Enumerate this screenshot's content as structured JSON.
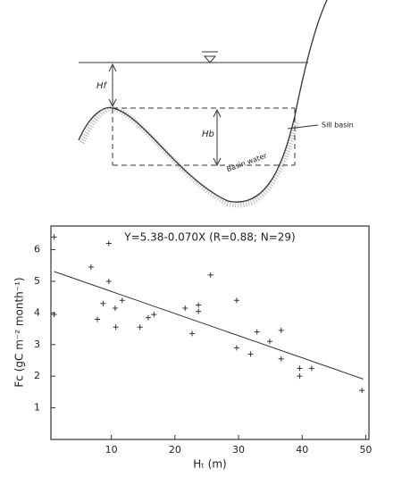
{
  "diagram": {
    "labels": [
      "Hf",
      "Hb",
      "Sill basin",
      "Basin water"
    ]
  },
  "chart_data": {
    "type": "scatter",
    "title": "Y=5.38-0.070X    (R=0.88; N=29)",
    "x_label": "Hₜ (m)",
    "y_label": "Fc (gC m⁻² month⁻¹)",
    "xlim": [
      0.5,
      50.5
    ],
    "ylim": [
      0,
      6.75
    ],
    "xticks": [
      10,
      20,
      30,
      40,
      50
    ],
    "yticks": [
      1,
      2,
      3,
      4,
      5,
      6
    ],
    "color": "#333333",
    "x": [
      1.0,
      1.0,
      6.8,
      7.8,
      8.7,
      9.6,
      9.6,
      10.6,
      10.7,
      11.7,
      14.5,
      15.8,
      16.7,
      21.6,
      22.7,
      23.7,
      23.7,
      25.6,
      29.7,
      29.7,
      31.9,
      32.9,
      34.9,
      36.7,
      36.7,
      39.6,
      39.6,
      41.5,
      49.4
    ],
    "values": [
      6.4,
      3.95,
      5.45,
      3.8,
      4.3,
      6.2,
      5.0,
      4.15,
      3.55,
      4.4,
      3.55,
      3.85,
      3.95,
      4.15,
      3.35,
      4.05,
      4.25,
      5.2,
      4.4,
      2.9,
      2.7,
      3.4,
      3.1,
      3.45,
      2.55,
      2.25,
      2.0,
      2.25,
      1.55
    ],
    "trend": {
      "x": [
        1.0,
        49.6
      ],
      "y": [
        5.31,
        1.91
      ]
    }
  }
}
